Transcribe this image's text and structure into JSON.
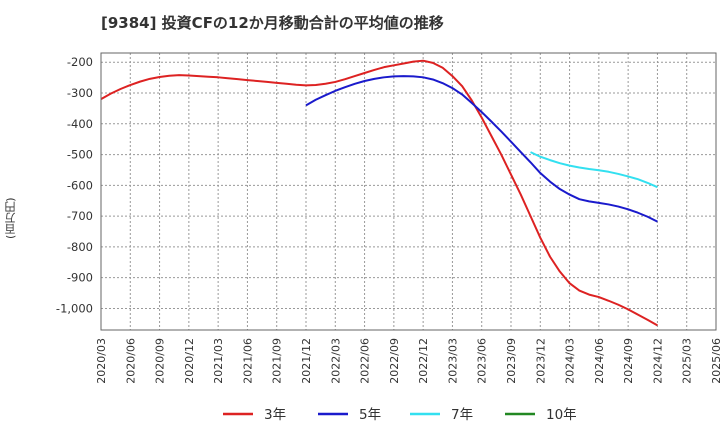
{
  "chart_data": {
    "type": "line",
    "title": "[9384]  投資CFの12か月移動合計の平均値の推移",
    "ylabel": "(百万円)",
    "xlabel": "",
    "ylim": [
      -1070,
      -170
    ],
    "yticks": [
      -200,
      -300,
      -400,
      -500,
      -600,
      -700,
      -800,
      -900,
      -1000
    ],
    "ytick_labels": [
      "-200",
      "-300",
      "-400",
      "-500",
      "-600",
      "-700",
      "-800",
      "-900",
      "-1,000"
    ],
    "xlim": [
      "2020/03",
      "2025/06"
    ],
    "xticks": [
      "2020/03",
      "2020/06",
      "2020/09",
      "2020/12",
      "2021/03",
      "2021/06",
      "2021/09",
      "2021/12",
      "2022/03",
      "2022/06",
      "2022/09",
      "2022/12",
      "2023/03",
      "2023/06",
      "2023/09",
      "2023/12",
      "2024/03",
      "2024/06",
      "2024/09",
      "2024/12",
      "2025/03",
      "2025/06"
    ],
    "grid": true,
    "legend_position": "bottom",
    "series": [
      {
        "name": "3年",
        "color": "#dd2222",
        "points": [
          [
            "2020/03",
            -320
          ],
          [
            "2020/04",
            -302
          ],
          [
            "2020/05",
            -287
          ],
          [
            "2020/06",
            -274
          ],
          [
            "2020/07",
            -263
          ],
          [
            "2020/08",
            -254
          ],
          [
            "2020/09",
            -248
          ],
          [
            "2020/10",
            -244
          ],
          [
            "2020/11",
            -242
          ],
          [
            "2020/12",
            -243
          ],
          [
            "2021/01",
            -245
          ],
          [
            "2021/02",
            -247
          ],
          [
            "2021/03",
            -249
          ],
          [
            "2021/04",
            -252
          ],
          [
            "2021/05",
            -255
          ],
          [
            "2021/06",
            -258
          ],
          [
            "2021/07",
            -261
          ],
          [
            "2021/08",
            -264
          ],
          [
            "2021/09",
            -267
          ],
          [
            "2021/10",
            -270
          ],
          [
            "2021/11",
            -273
          ],
          [
            "2021/12",
            -275
          ],
          [
            "2022/01",
            -274
          ],
          [
            "2022/02",
            -270
          ],
          [
            "2022/03",
            -264
          ],
          [
            "2022/04",
            -255
          ],
          [
            "2022/05",
            -245
          ],
          [
            "2022/06",
            -235
          ],
          [
            "2022/07",
            -225
          ],
          [
            "2022/08",
            -216
          ],
          [
            "2022/09",
            -210
          ],
          [
            "2022/10",
            -204
          ],
          [
            "2022/11",
            -198
          ],
          [
            "2022/12",
            -195
          ],
          [
            "2023/01",
            -202
          ],
          [
            "2023/02",
            -218
          ],
          [
            "2023/03",
            -245
          ],
          [
            "2023/04",
            -278
          ],
          [
            "2023/05",
            -325
          ],
          [
            "2023/06",
            -380
          ],
          [
            "2023/07",
            -440
          ],
          [
            "2023/08",
            -500
          ],
          [
            "2023/09",
            -565
          ],
          [
            "2023/10",
            -630
          ],
          [
            "2023/11",
            -700
          ],
          [
            "2023/12",
            -770
          ],
          [
            "2024/01",
            -832
          ],
          [
            "2024/02",
            -880
          ],
          [
            "2024/03",
            -918
          ],
          [
            "2024/04",
            -942
          ],
          [
            "2024/05",
            -955
          ],
          [
            "2024/06",
            -963
          ],
          [
            "2024/07",
            -975
          ],
          [
            "2024/08",
            -988
          ],
          [
            "2024/09",
            -1003
          ],
          [
            "2024/10",
            -1020
          ],
          [
            "2024/11",
            -1037
          ],
          [
            "2024/12",
            -1055
          ]
        ]
      },
      {
        "name": "5年",
        "color": "#1a1acc",
        "points": [
          [
            "2021/12",
            -340
          ],
          [
            "2022/01",
            -322
          ],
          [
            "2022/02",
            -307
          ],
          [
            "2022/03",
            -293
          ],
          [
            "2022/04",
            -281
          ],
          [
            "2022/05",
            -270
          ],
          [
            "2022/06",
            -261
          ],
          [
            "2022/07",
            -254
          ],
          [
            "2022/08",
            -249
          ],
          [
            "2022/09",
            -246
          ],
          [
            "2022/10",
            -245
          ],
          [
            "2022/11",
            -246
          ],
          [
            "2022/12",
            -249
          ],
          [
            "2023/01",
            -256
          ],
          [
            "2023/02",
            -268
          ],
          [
            "2023/03",
            -284
          ],
          [
            "2023/04",
            -305
          ],
          [
            "2023/05",
            -333
          ],
          [
            "2023/06",
            -362
          ],
          [
            "2023/07",
            -393
          ],
          [
            "2023/08",
            -425
          ],
          [
            "2023/09",
            -458
          ],
          [
            "2023/10",
            -492
          ],
          [
            "2023/11",
            -525
          ],
          [
            "2023/12",
            -560
          ],
          [
            "2024/01",
            -588
          ],
          [
            "2024/02",
            -612
          ],
          [
            "2024/03",
            -630
          ],
          [
            "2024/04",
            -645
          ],
          [
            "2024/05",
            -652
          ],
          [
            "2024/06",
            -657
          ],
          [
            "2024/07",
            -662
          ],
          [
            "2024/08",
            -669
          ],
          [
            "2024/09",
            -678
          ],
          [
            "2024/10",
            -689
          ],
          [
            "2024/11",
            -702
          ],
          [
            "2024/12",
            -718
          ]
        ]
      },
      {
        "name": "7年",
        "color": "#33e0f0",
        "points": [
          [
            "2023/11",
            -492
          ],
          [
            "2023/12",
            -507
          ],
          [
            "2024/01",
            -518
          ],
          [
            "2024/02",
            -528
          ],
          [
            "2024/03",
            -536
          ],
          [
            "2024/04",
            -542
          ],
          [
            "2024/05",
            -547
          ],
          [
            "2024/06",
            -551
          ],
          [
            "2024/07",
            -556
          ],
          [
            "2024/08",
            -563
          ],
          [
            "2024/09",
            -571
          ],
          [
            "2024/10",
            -580
          ],
          [
            "2024/11",
            -592
          ],
          [
            "2024/12",
            -606
          ]
        ]
      },
      {
        "name": "10年",
        "color": "#228822",
        "points": []
      }
    ]
  }
}
